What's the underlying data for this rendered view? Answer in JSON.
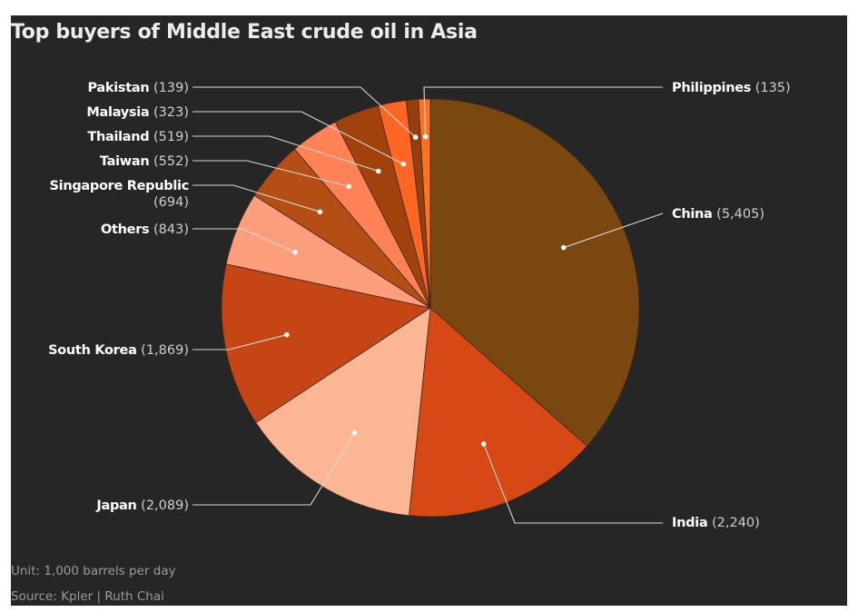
{
  "chart_data": {
    "type": "pie",
    "title": "Top buyers of Middle East crude oil in Asia",
    "unit": "Unit: 1,000 barrels per day",
    "source": "Source: Kpler | Ruth Chai",
    "slices": [
      {
        "name": "China",
        "value": 5405,
        "value_label": "(5,405)",
        "color": "#7b4711"
      },
      {
        "name": "India",
        "value": 2240,
        "value_label": "(2,240)",
        "color": "#d64814"
      },
      {
        "name": "Japan",
        "value": 2089,
        "value_label": "(2,089)",
        "color": "#fdb694"
      },
      {
        "name": "South Korea",
        "value": 1869,
        "value_label": "(1,869)",
        "color": "#c54614"
      },
      {
        "name": "Others",
        "value": 843,
        "value_label": "(843)",
        "color": "#fc9d7c"
      },
      {
        "name": "Singapore Republic",
        "value": 694,
        "value_label": "(694)",
        "color": "#b44e14"
      },
      {
        "name": "Taiwan",
        "value": 552,
        "value_label": "(552)",
        "color": "#ff8156"
      },
      {
        "name": "Thailand",
        "value": 519,
        "value_label": "(519)",
        "color": "#a1410c"
      },
      {
        "name": "Malaysia",
        "value": 323,
        "value_label": "(323)",
        "color": "#ff6624"
      },
      {
        "name": "Pakistan",
        "value": 139,
        "value_label": "(139)",
        "color": "#95400c"
      },
      {
        "name": "Philippines",
        "value": 135,
        "value_label": "(135)",
        "color": "#ff7222"
      }
    ]
  }
}
